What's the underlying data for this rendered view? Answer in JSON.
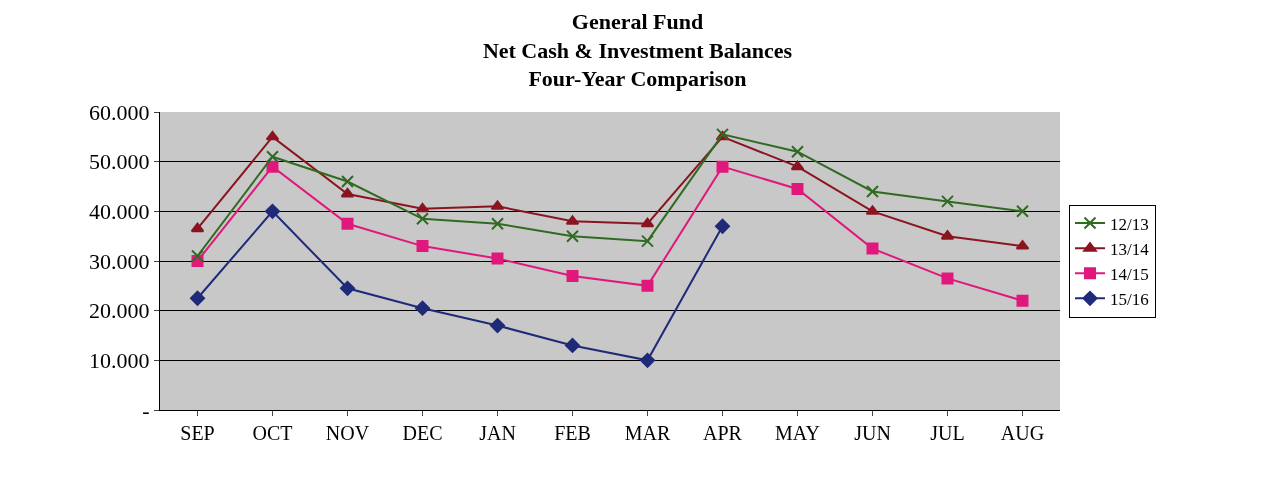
{
  "chart_data": {
    "type": "line",
    "title": "General Fund\nNet Cash & Investment Balances\nFour-Year Comparison",
    "categories": [
      "SEP",
      "OCT",
      "NOV",
      "DEC",
      "JAN",
      "FEB",
      "MAR",
      "APR",
      "MAY",
      "JUN",
      "JUL",
      "AUG"
    ],
    "series": [
      {
        "name": "12/13",
        "color": "#2f6b21",
        "marker": "cross",
        "values": [
          31,
          51,
          46,
          38.5,
          37.5,
          35,
          34,
          55.5,
          52,
          44,
          42,
          40
        ]
      },
      {
        "name": "13/14",
        "color": "#8a1520",
        "marker": "triangle",
        "values": [
          36.5,
          55,
          43.5,
          40.5,
          41,
          38,
          37.5,
          55,
          49,
          40,
          35,
          33
        ]
      },
      {
        "name": "14/15",
        "color": "#e0187c",
        "marker": "square",
        "values": [
          30,
          49,
          37.5,
          33,
          30.5,
          27,
          25,
          49,
          44.5,
          32.5,
          26.5,
          22
        ]
      },
      {
        "name": "15/16",
        "color": "#1f2a78",
        "marker": "diamond",
        "values": [
          22.5,
          40,
          24.5,
          20.5,
          17,
          13,
          10,
          37,
          null,
          null,
          null,
          null
        ]
      }
    ],
    "ylim": [
      0,
      60
    ],
    "yticks": [
      {
        "value": 0,
        "label": "-"
      },
      {
        "value": 10,
        "label": "10.000"
      },
      {
        "value": 20,
        "label": "20.000"
      },
      {
        "value": 30,
        "label": "30.000"
      },
      {
        "value": 40,
        "label": "40.000"
      },
      {
        "value": 50,
        "label": "50.000"
      },
      {
        "value": 60,
        "label": "60.000"
      }
    ],
    "grid": "y",
    "legend": "right",
    "line_style": "solid"
  }
}
